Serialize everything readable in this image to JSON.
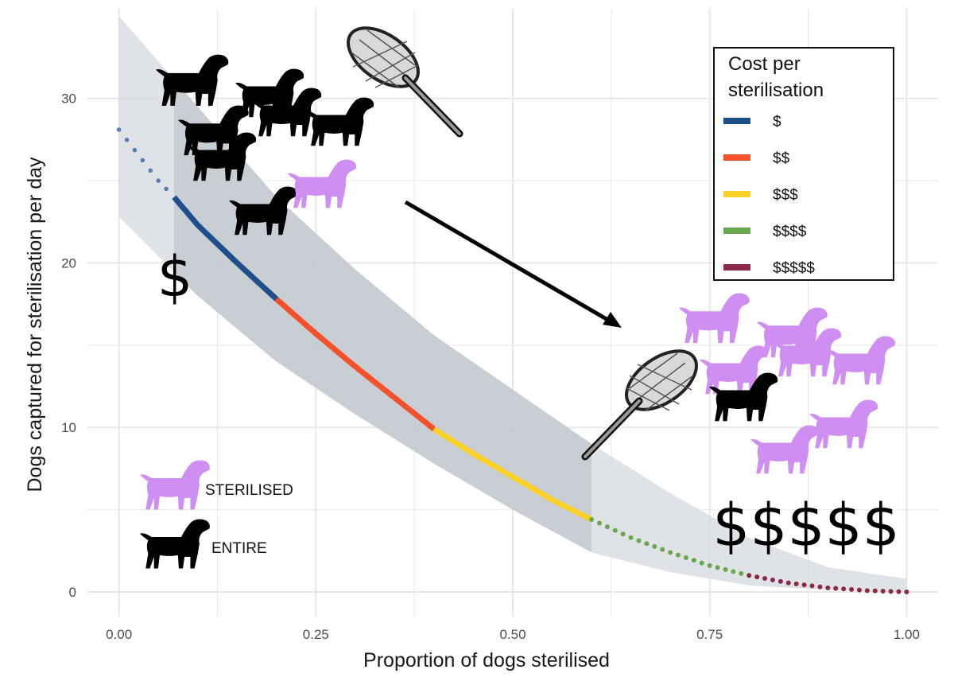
{
  "chart_data": {
    "type": "line",
    "title": "",
    "xlabel": "Proportion of dogs sterilised",
    "ylabel": "Dogs captured for sterilisation per day",
    "xlim": [
      -0.04,
      1.04
    ],
    "ylim": [
      -1.5,
      35.5
    ],
    "x_ticks": [
      "0.00",
      "0.25",
      "0.50",
      "0.75",
      "1.00"
    ],
    "x_tick_values": [
      0,
      0.25,
      0.5,
      0.75,
      1.0
    ],
    "y_ticks": [
      "0",
      "10",
      "20",
      "30"
    ],
    "y_tick_values": [
      0,
      10,
      20,
      30
    ],
    "grid": true,
    "curve": {
      "x": [
        0.0,
        0.05,
        0.07,
        0.1,
        0.15,
        0.2,
        0.25,
        0.3,
        0.35,
        0.4,
        0.45,
        0.5,
        0.55,
        0.6,
        0.65,
        0.7,
        0.75,
        0.8,
        0.85,
        0.9,
        0.95,
        1.0
      ],
      "y": [
        28.1,
        25.0,
        24.0,
        22.3,
        20.0,
        17.8,
        15.7,
        13.7,
        11.8,
        9.9,
        8.4,
        7.0,
        5.6,
        4.4,
        3.3,
        2.4,
        1.6,
        1.0,
        0.55,
        0.25,
        0.08,
        0.0
      ]
    },
    "band": {
      "x": [
        0.0,
        0.1,
        0.2,
        0.3,
        0.4,
        0.5,
        0.6,
        0.7,
        0.8,
        0.9,
        1.0
      ],
      "upper": [
        35.0,
        29.5,
        24.0,
        19.6,
        15.6,
        12.3,
        9.0,
        6.0,
        3.3,
        1.5,
        0.8
      ],
      "lower": [
        22.8,
        18.0,
        14.0,
        10.8,
        7.8,
        5.0,
        2.4,
        1.2,
        0.4,
        0.1,
        0.0
      ]
    },
    "segments": [
      {
        "name": "$",
        "from": 0.07,
        "to": 0.2,
        "color": "#1f4e8c"
      },
      {
        "name": "$$",
        "from": 0.2,
        "to": 0.4,
        "color": "#f4502a"
      },
      {
        "name": "$$$",
        "from": 0.4,
        "to": 0.6,
        "color": "#f9d028"
      },
      {
        "name": "$$$$",
        "from": 0.6,
        "to": 0.8,
        "color": "#6aa84f"
      },
      {
        "name": "$$$$$",
        "from": 0.8,
        "to": 1.0,
        "color": "#8c2a45"
      }
    ],
    "dotted_start": {
      "from": 0.0,
      "to": 0.07,
      "color": "#5b7fb0"
    },
    "highlight_range": [
      0.07,
      0.6
    ],
    "legend": {
      "title_lines": [
        "Cost per",
        "sterilisation"
      ],
      "placement": "top-right",
      "entries": [
        {
          "label": "$",
          "color": "#1f4e8c"
        },
        {
          "label": "$$",
          "color": "#f4502a"
        },
        {
          "label": "$$$",
          "color": "#f9d028"
        },
        {
          "label": "$$$$",
          "color": "#6aa84f"
        },
        {
          "label": "$$$$$",
          "color": "#8c2a45"
        }
      ]
    },
    "annotations": {
      "cost_low": "$",
      "cost_high": "$$$$$",
      "key_sterilised": "STERILISED",
      "key_entire": "ENTIRE"
    }
  },
  "colors": {
    "sterilised_dog": "#cf8ff2",
    "entire_dog": "#000000",
    "band": "#d4d8de",
    "band_highlight": "#c2c7ce",
    "grid": "#e8e8e8"
  },
  "icons": [
    "dog-silhouette-icon",
    "capture-net-icon",
    "arrow-icon"
  ]
}
